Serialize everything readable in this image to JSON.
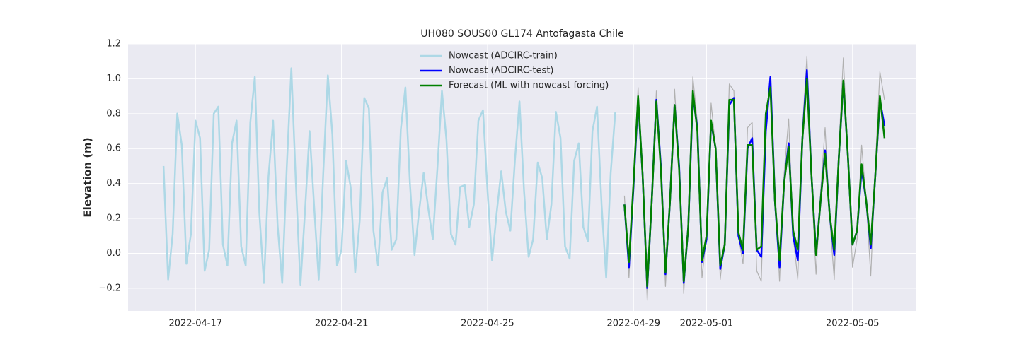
{
  "chart_data": {
    "type": "line",
    "title": "UH080 SOUS00 GL174 Antofagasta Chile",
    "y_label": "Elevation (m)",
    "ylim": [
      -0.33,
      1.2
    ],
    "yticks": [
      {
        "value": -0.2,
        "label": "−0.2"
      },
      {
        "value": 0,
        "label": "0.0"
      },
      0.2,
      0.4,
      0.6,
      0.8,
      {
        "value": 1,
        "label": "1.0"
      },
      1.2
    ],
    "xlim": [
      "2022-04-15T03:40",
      "2022-05-06T18:00"
    ],
    "xticks": [
      "2022-04-17",
      "2022-04-21",
      "2022-04-25",
      "2022-04-29",
      "2022-05-01",
      "2022-05-05"
    ],
    "grid": true,
    "legend": "upper center",
    "series": [
      {
        "color": "#b0b0b0",
        "x": [
          "2022-04-28T18:00",
          "2022-04-28T21:00",
          "2022-04-29T00:00",
          "2022-04-29T03:00",
          "2022-04-29T06:00",
          "2022-04-29T09:00",
          "2022-04-29T12:00",
          "2022-04-29T15:00",
          "2022-04-29T18:00",
          "2022-04-29T21:00",
          "2022-04-30T00:00",
          "2022-04-30T03:00",
          "2022-04-30T06:00",
          "2022-04-30T09:00",
          "2022-04-30T12:00",
          "2022-04-30T15:00",
          "2022-04-30T18:00",
          "2022-04-30T21:00",
          "2022-05-01T00:00",
          "2022-05-01T03:00",
          "2022-05-01T06:00",
          "2022-05-01T09:00",
          "2022-05-01T12:00",
          "2022-05-01T15:00",
          "2022-05-01T18:00",
          "2022-05-01T21:00",
          "2022-05-02T00:00",
          "2022-05-02T03:00",
          "2022-05-02T06:00",
          "2022-05-02T09:00",
          "2022-05-02T12:00",
          "2022-05-02T15:00",
          "2022-05-02T18:00",
          "2022-05-02T21:00",
          "2022-05-03T00:00",
          "2022-05-03T03:00",
          "2022-05-03T06:00",
          "2022-05-03T09:00",
          "2022-05-03T12:00",
          "2022-05-03T15:00",
          "2022-05-03T18:00",
          "2022-05-03T21:00",
          "2022-05-04T00:00",
          "2022-05-04T03:00",
          "2022-05-04T06:00",
          "2022-05-04T09:00",
          "2022-05-04T12:00",
          "2022-05-04T15:00",
          "2022-05-04T18:00",
          "2022-05-04T21:00",
          "2022-05-05T00:00",
          "2022-05-05T03:00",
          "2022-05-05T06:00",
          "2022-05-05T09:00",
          "2022-05-05T12:00",
          "2022-05-05T15:00",
          "2022-05-05T18:00",
          "2022-05-05T21:00"
        ],
        "values": [
          0.33,
          -0.14,
          0.4,
          0.95,
          0.45,
          -0.27,
          0.3,
          0.93,
          0.5,
          -0.19,
          0.3,
          0.94,
          0.5,
          -0.23,
          0.2,
          1.01,
          0.75,
          -0.14,
          0.1,
          0.86,
          0.6,
          -0.15,
          0.1,
          0.97,
          0.93,
          0.1,
          -0.06,
          0.72,
          0.75,
          -0.1,
          -0.16,
          0.75,
          1.0,
          0.4,
          -0.16,
          0.45,
          0.77,
          0.1,
          -0.15,
          0.7,
          1.13,
          0.4,
          -0.12,
          0.35,
          0.72,
          0.2,
          -0.15,
          0.6,
          1.12,
          0.55,
          -0.08,
          0.08,
          0.62,
          0.3,
          -0.13,
          0.5,
          1.04,
          0.88
        ]
      },
      {
        "name": "Nowcast (ADCIRC-train)",
        "color": "#add8e6",
        "x": [
          "2022-04-16T03:00",
          "2022-04-16T06:00",
          "2022-04-16T09:00",
          "2022-04-16T12:00",
          "2022-04-16T15:00",
          "2022-04-16T18:00",
          "2022-04-16T21:00",
          "2022-04-17T00:00",
          "2022-04-17T03:00",
          "2022-04-17T06:00",
          "2022-04-17T09:00",
          "2022-04-17T12:00",
          "2022-04-17T15:00",
          "2022-04-17T18:00",
          "2022-04-17T21:00",
          "2022-04-18T00:00",
          "2022-04-18T03:00",
          "2022-04-18T06:00",
          "2022-04-18T09:00",
          "2022-04-18T12:00",
          "2022-04-18T15:00",
          "2022-04-18T18:00",
          "2022-04-18T21:00",
          "2022-04-19T00:00",
          "2022-04-19T03:00",
          "2022-04-19T06:00",
          "2022-04-19T09:00",
          "2022-04-19T12:00",
          "2022-04-19T15:00",
          "2022-04-19T18:00",
          "2022-04-19T21:00",
          "2022-04-20T00:00",
          "2022-04-20T03:00",
          "2022-04-20T06:00",
          "2022-04-20T09:00",
          "2022-04-20T12:00",
          "2022-04-20T15:00",
          "2022-04-20T18:00",
          "2022-04-20T21:00",
          "2022-04-21T00:00",
          "2022-04-21T03:00",
          "2022-04-21T06:00",
          "2022-04-21T09:00",
          "2022-04-21T12:00",
          "2022-04-21T15:00",
          "2022-04-21T18:00",
          "2022-04-21T21:00",
          "2022-04-22T00:00",
          "2022-04-22T03:00",
          "2022-04-22T06:00",
          "2022-04-22T09:00",
          "2022-04-22T12:00",
          "2022-04-22T15:00",
          "2022-04-22T18:00",
          "2022-04-22T21:00",
          "2022-04-23T00:00",
          "2022-04-23T03:00",
          "2022-04-23T06:00",
          "2022-04-23T09:00",
          "2022-04-23T12:00",
          "2022-04-23T15:00",
          "2022-04-23T18:00",
          "2022-04-23T21:00",
          "2022-04-24T00:00",
          "2022-04-24T03:00",
          "2022-04-24T06:00",
          "2022-04-24T09:00",
          "2022-04-24T12:00",
          "2022-04-24T15:00",
          "2022-04-24T18:00",
          "2022-04-24T21:00",
          "2022-04-25T00:00",
          "2022-04-25T03:00",
          "2022-04-25T06:00",
          "2022-04-25T09:00",
          "2022-04-25T12:00",
          "2022-04-25T15:00",
          "2022-04-25T18:00",
          "2022-04-25T21:00",
          "2022-04-26T00:00",
          "2022-04-26T03:00",
          "2022-04-26T06:00",
          "2022-04-26T09:00",
          "2022-04-26T12:00",
          "2022-04-26T15:00",
          "2022-04-26T18:00",
          "2022-04-26T21:00",
          "2022-04-27T00:00",
          "2022-04-27T03:00",
          "2022-04-27T06:00",
          "2022-04-27T09:00",
          "2022-04-27T12:00",
          "2022-04-27T15:00",
          "2022-04-27T18:00",
          "2022-04-27T21:00",
          "2022-04-28T00:00",
          "2022-04-28T03:00",
          "2022-04-28T06:00",
          "2022-04-28T09:00",
          "2022-04-28T12:00"
        ],
        "values": [
          0.5,
          -0.15,
          0.11,
          0.8,
          0.62,
          -0.06,
          0.11,
          0.76,
          0.66,
          -0.1,
          0.02,
          0.8,
          0.84,
          0.05,
          -0.07,
          0.63,
          0.76,
          0.04,
          -0.07,
          0.75,
          1.01,
          0.23,
          -0.17,
          0.44,
          0.76,
          0.16,
          -0.17,
          0.49,
          1.06,
          0.4,
          -0.18,
          0.24,
          0.7,
          0.27,
          -0.15,
          0.46,
          1.02,
          0.68,
          -0.07,
          0.02,
          0.53,
          0.38,
          -0.11,
          0.19,
          0.89,
          0.83,
          0.13,
          -0.07,
          0.35,
          0.43,
          0.02,
          0.08,
          0.71,
          0.95,
          0.4,
          -0.01,
          0.24,
          0.46,
          0.26,
          0.08,
          0.48,
          0.93,
          0.65,
          0.11,
          0.05,
          0.38,
          0.39,
          0.15,
          0.28,
          0.76,
          0.82,
          0.36,
          -0.04,
          0.23,
          0.47,
          0.24,
          0.13,
          0.53,
          0.87,
          0.36,
          -0.02,
          0.08,
          0.52,
          0.43,
          0.08,
          0.28,
          0.81,
          0.66,
          0.04,
          -0.03,
          0.53,
          0.63,
          0.15,
          0.07,
          0.7,
          0.84,
          0.28,
          -0.14,
          0.46,
          0.81
        ]
      },
      {
        "name": "Nowcast (ADCIRC-test)",
        "color": "#0000ff",
        "x": [
          "2022-04-28T18:00",
          "2022-04-28T21:00",
          "2022-04-29T00:00",
          "2022-04-29T03:00",
          "2022-04-29T06:00",
          "2022-04-29T09:00",
          "2022-04-29T12:00",
          "2022-04-29T15:00",
          "2022-04-29T18:00",
          "2022-04-29T21:00",
          "2022-04-30T00:00",
          "2022-04-30T03:00",
          "2022-04-30T06:00",
          "2022-04-30T09:00",
          "2022-04-30T12:00",
          "2022-04-30T15:00",
          "2022-04-30T18:00",
          "2022-04-30T21:00",
          "2022-05-01T00:00",
          "2022-05-01T03:00",
          "2022-05-01T06:00",
          "2022-05-01T09:00",
          "2022-05-01T12:00",
          "2022-05-01T15:00",
          "2022-05-01T18:00",
          "2022-05-01T21:00",
          "2022-05-02T00:00",
          "2022-05-02T03:00",
          "2022-05-02T06:00",
          "2022-05-02T09:00",
          "2022-05-02T12:00",
          "2022-05-02T15:00",
          "2022-05-02T18:00",
          "2022-05-02T21:00",
          "2022-05-03T00:00",
          "2022-05-03T03:00",
          "2022-05-03T06:00",
          "2022-05-03T09:00",
          "2022-05-03T12:00",
          "2022-05-03T15:00",
          "2022-05-03T18:00",
          "2022-05-03T21:00",
          "2022-05-04T00:00",
          "2022-05-04T03:00",
          "2022-05-04T06:00",
          "2022-05-04T09:00",
          "2022-05-04T12:00",
          "2022-05-04T15:00",
          "2022-05-04T18:00",
          "2022-05-04T21:00",
          "2022-05-05T00:00",
          "2022-05-05T03:00",
          "2022-05-05T06:00",
          "2022-05-05T09:00",
          "2022-05-05T12:00",
          "2022-05-05T15:00",
          "2022-05-05T18:00",
          "2022-05-05T21:00"
        ],
        "values": [
          0.28,
          -0.08,
          0.38,
          0.88,
          0.45,
          -0.2,
          0.3,
          0.88,
          0.5,
          -0.12,
          0.3,
          0.85,
          0.5,
          -0.17,
          0.15,
          0.9,
          0.72,
          -0.05,
          0.08,
          0.75,
          0.6,
          -0.09,
          0.05,
          0.85,
          0.89,
          0.1,
          0.0,
          0.6,
          0.66,
          0.02,
          -0.02,
          0.7,
          1.01,
          0.3,
          -0.08,
          0.4,
          0.63,
          0.1,
          -0.04,
          0.65,
          1.05,
          0.45,
          0.0,
          0.3,
          0.59,
          0.22,
          -0.01,
          0.55,
          0.98,
          0.55,
          0.05,
          0.13,
          0.48,
          0.3,
          0.03,
          0.45,
          0.88,
          0.73
        ]
      },
      {
        "name": "Forecast (ML with nowcast forcing)",
        "color": "#008000",
        "x": [
          "2022-04-28T18:00",
          "2022-04-28T21:00",
          "2022-04-29T00:00",
          "2022-04-29T03:00",
          "2022-04-29T06:00",
          "2022-04-29T09:00",
          "2022-04-29T12:00",
          "2022-04-29T15:00",
          "2022-04-29T18:00",
          "2022-04-29T21:00",
          "2022-04-30T00:00",
          "2022-04-30T03:00",
          "2022-04-30T06:00",
          "2022-04-30T09:00",
          "2022-04-30T12:00",
          "2022-04-30T15:00",
          "2022-04-30T18:00",
          "2022-04-30T21:00",
          "2022-05-01T00:00",
          "2022-05-01T03:00",
          "2022-05-01T06:00",
          "2022-05-01T09:00",
          "2022-05-01T12:00",
          "2022-05-01T15:00",
          "2022-05-01T18:00",
          "2022-05-01T21:00",
          "2022-05-02T00:00",
          "2022-05-02T03:00",
          "2022-05-02T06:00",
          "2022-05-02T09:00",
          "2022-05-02T12:00",
          "2022-05-02T15:00",
          "2022-05-02T18:00",
          "2022-05-02T21:00",
          "2022-05-03T00:00",
          "2022-05-03T03:00",
          "2022-05-03T06:00",
          "2022-05-03T09:00",
          "2022-05-03T12:00",
          "2022-05-03T15:00",
          "2022-05-03T18:00",
          "2022-05-03T21:00",
          "2022-05-04T00:00",
          "2022-05-04T03:00",
          "2022-05-04T06:00",
          "2022-05-04T09:00",
          "2022-05-04T12:00",
          "2022-05-04T15:00",
          "2022-05-04T18:00",
          "2022-05-04T21:00",
          "2022-05-05T00:00",
          "2022-05-05T03:00",
          "2022-05-05T06:00",
          "2022-05-05T09:00",
          "2022-05-05T12:00",
          "2022-05-05T15:00",
          "2022-05-05T18:00",
          "2022-05-05T21:00"
        ],
        "values": [
          0.28,
          -0.05,
          0.4,
          0.9,
          0.45,
          -0.19,
          0.3,
          0.87,
          0.48,
          -0.11,
          0.3,
          0.85,
          0.48,
          -0.16,
          0.15,
          0.93,
          0.7,
          -0.04,
          0.1,
          0.76,
          0.6,
          -0.07,
          0.05,
          0.88,
          0.88,
          0.12,
          0.02,
          0.62,
          0.62,
          0.02,
          0.04,
          0.8,
          0.95,
          0.3,
          -0.04,
          0.4,
          0.61,
          0.13,
          0.02,
          0.65,
          1.0,
          0.45,
          -0.01,
          0.3,
          0.57,
          0.22,
          0.02,
          0.55,
          0.99,
          0.55,
          0.05,
          0.13,
          0.51,
          0.3,
          0.05,
          0.45,
          0.9,
          0.66
        ]
      }
    ]
  }
}
